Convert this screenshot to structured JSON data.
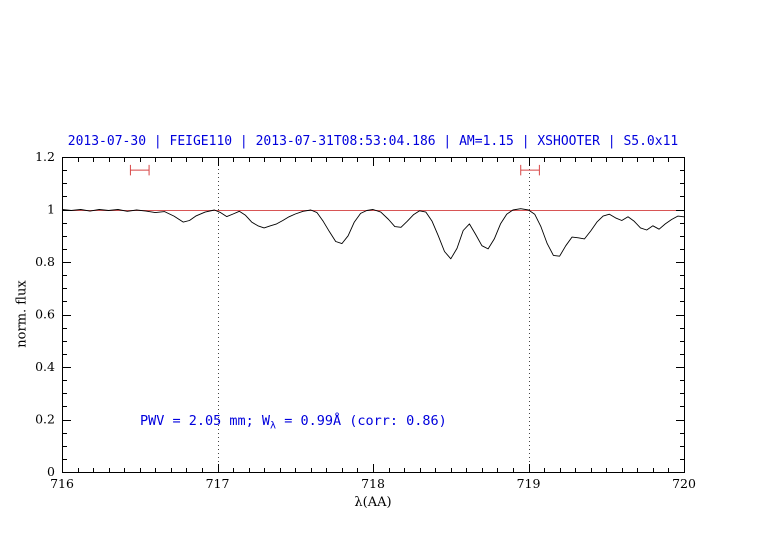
{
  "title": {
    "text": "2013-07-30 | FEIGE110 | 2013-07-31T08:53:04.186 | AM=1.15 | XSHOOTER | S5.0x11",
    "color": "#0000dd"
  },
  "annotation": {
    "prefix": "PWV = 2.05 mm; W",
    "sub": "λ",
    "suffix": " = 0.99Å (corr: 0.86)",
    "color": "#0000dd"
  },
  "chart_data": {
    "type": "line",
    "title": "2013-07-30 | FEIGE110 | 2013-07-31T08:53:04.186 | AM=1.15 | XSHOOTER | S5.0x11",
    "xlabel": "λ(AA)",
    "ylabel": "norm. flux",
    "xlim": [
      716,
      720
    ],
    "ylim": [
      0,
      1.2
    ],
    "x_ticks": [
      716,
      717,
      718,
      719,
      720
    ],
    "x_tick_labels": [
      "716",
      "717",
      "718",
      "719",
      "720"
    ],
    "x_minor_step": 0.1,
    "y_ticks": [
      0,
      0.2,
      0.4,
      0.6,
      0.8,
      1,
      1.2
    ],
    "y_tick_labels": [
      "0",
      "0.2",
      "0.4",
      "0.6",
      "0.8",
      "1",
      "1.2"
    ],
    "y_minor_step": 0.05,
    "grid": false,
    "vlines": [
      717,
      719
    ],
    "vline_color": "#444444",
    "continuum": {
      "y": 1.0,
      "color": "#d85555"
    },
    "window_markers": {
      "color": "#d84444",
      "y": 1.15,
      "cap_halfheight": 0.02,
      "ranges": [
        [
          716.44,
          716.56
        ],
        [
          718.95,
          719.07
        ]
      ]
    },
    "series": [
      {
        "name": "observed normalized spectrum",
        "color": "#000000",
        "points": [
          [
            716.0,
            1.0
          ],
          [
            716.06,
            0.996
          ],
          [
            716.12,
            1.0
          ],
          [
            716.18,
            0.994
          ],
          [
            716.24,
            1.0
          ],
          [
            716.3,
            0.996
          ],
          [
            716.36,
            1.0
          ],
          [
            716.42,
            0.993
          ],
          [
            716.48,
            0.998
          ],
          [
            716.54,
            0.994
          ],
          [
            716.6,
            0.988
          ],
          [
            716.66,
            0.992
          ],
          [
            716.72,
            0.975
          ],
          [
            716.78,
            0.952
          ],
          [
            716.82,
            0.958
          ],
          [
            716.86,
            0.975
          ],
          [
            716.92,
            0.99
          ],
          [
            716.98,
            0.998
          ],
          [
            717.02,
            0.988
          ],
          [
            717.06,
            0.973
          ],
          [
            717.1,
            0.983
          ],
          [
            717.14,
            0.993
          ],
          [
            717.18,
            0.978
          ],
          [
            717.22,
            0.952
          ],
          [
            717.26,
            0.938
          ],
          [
            717.3,
            0.93
          ],
          [
            717.34,
            0.938
          ],
          [
            717.38,
            0.945
          ],
          [
            717.42,
            0.958
          ],
          [
            717.46,
            0.972
          ],
          [
            717.5,
            0.983
          ],
          [
            717.55,
            0.993
          ],
          [
            717.6,
            0.998
          ],
          [
            717.64,
            0.988
          ],
          [
            717.68,
            0.955
          ],
          [
            717.72,
            0.915
          ],
          [
            717.76,
            0.878
          ],
          [
            717.8,
            0.87
          ],
          [
            717.84,
            0.9
          ],
          [
            717.88,
            0.952
          ],
          [
            717.92,
            0.985
          ],
          [
            717.96,
            0.996
          ],
          [
            718.0,
            1.0
          ],
          [
            718.05,
            0.99
          ],
          [
            718.1,
            0.962
          ],
          [
            718.14,
            0.935
          ],
          [
            718.18,
            0.932
          ],
          [
            718.22,
            0.955
          ],
          [
            718.26,
            0.98
          ],
          [
            718.3,
            0.995
          ],
          [
            718.34,
            0.99
          ],
          [
            718.38,
            0.955
          ],
          [
            718.42,
            0.9
          ],
          [
            718.46,
            0.84
          ],
          [
            718.5,
            0.812
          ],
          [
            718.54,
            0.852
          ],
          [
            718.58,
            0.92
          ],
          [
            718.62,
            0.945
          ],
          [
            718.66,
            0.905
          ],
          [
            718.7,
            0.862
          ],
          [
            718.74,
            0.85
          ],
          [
            718.78,
            0.888
          ],
          [
            718.82,
            0.945
          ],
          [
            718.86,
            0.982
          ],
          [
            718.9,
            0.998
          ],
          [
            718.95,
            1.003
          ],
          [
            719.0,
            0.998
          ],
          [
            719.04,
            0.982
          ],
          [
            719.08,
            0.935
          ],
          [
            719.12,
            0.87
          ],
          [
            719.16,
            0.825
          ],
          [
            719.2,
            0.822
          ],
          [
            719.24,
            0.862
          ],
          [
            719.28,
            0.895
          ],
          [
            719.32,
            0.892
          ],
          [
            719.36,
            0.888
          ],
          [
            719.4,
            0.918
          ],
          [
            719.44,
            0.952
          ],
          [
            719.48,
            0.975
          ],
          [
            719.52,
            0.982
          ],
          [
            719.56,
            0.968
          ],
          [
            719.6,
            0.958
          ],
          [
            719.64,
            0.972
          ],
          [
            719.68,
            0.955
          ],
          [
            719.72,
            0.93
          ],
          [
            719.76,
            0.922
          ],
          [
            719.8,
            0.938
          ],
          [
            719.84,
            0.925
          ],
          [
            719.88,
            0.945
          ],
          [
            719.92,
            0.962
          ],
          [
            719.96,
            0.975
          ],
          [
            720.0,
            0.972
          ]
        ]
      }
    ]
  }
}
